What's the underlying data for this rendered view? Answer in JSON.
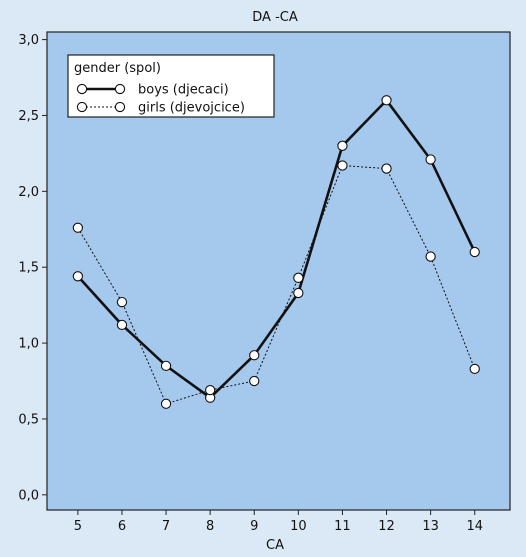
{
  "chart_data": {
    "type": "line",
    "title": "DA -CA",
    "xlabel": "CA",
    "ylabel": "",
    "x": [
      5,
      6,
      7,
      8,
      9,
      10,
      11,
      12,
      13,
      14
    ],
    "xticks": [
      "5",
      "6",
      "7",
      "8",
      "9",
      "10",
      "11",
      "12",
      "13",
      "14"
    ],
    "yticks": [
      "0,0",
      "0,5",
      "1,0",
      "1,5",
      "2,0",
      "2,5",
      "3,0"
    ],
    "xlim": [
      4.3,
      14.8
    ],
    "ylim": [
      -0.1,
      3.05
    ],
    "grid": false,
    "legend_placement": "top-left",
    "legend_title": "gender (spol)",
    "series": [
      {
        "name": "boys (djecaci)",
        "style": "solid",
        "values": [
          1.44,
          1.12,
          0.85,
          0.64,
          0.92,
          1.33,
          2.3,
          2.6,
          2.21,
          1.6
        ]
      },
      {
        "name": "girls (djevojcice)",
        "style": "dotted",
        "values": [
          1.76,
          1.27,
          0.6,
          0.69,
          0.75,
          1.43,
          2.17,
          2.15,
          1.57,
          0.83
        ]
      }
    ],
    "colors": {
      "plot_background": "#a5c8ed",
      "page_background": "#dbe9f6",
      "line": "#111111",
      "marker_fill": "#ffffff"
    }
  }
}
